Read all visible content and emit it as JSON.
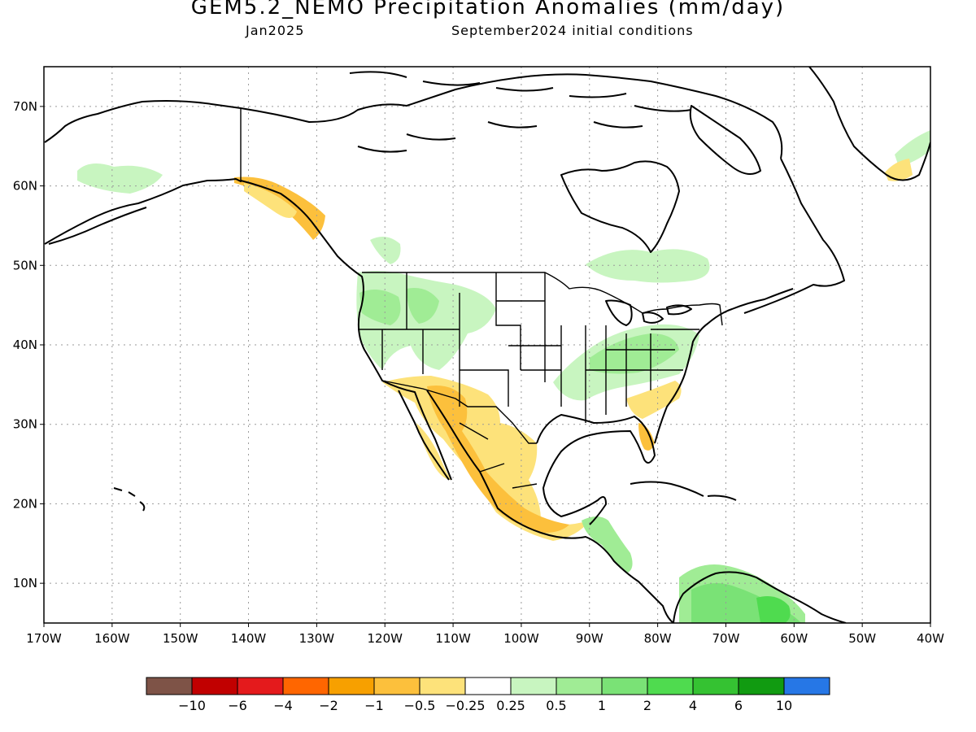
{
  "header": {
    "title": "GEM5.2_NEMO Precipitation Anomalies (mm/day)",
    "subtitle_left": "Jan2025",
    "subtitle_right": "September2024 initial conditions"
  },
  "map": {
    "lon_labels": [
      "170W",
      "160W",
      "150W",
      "140W",
      "130W",
      "120W",
      "110W",
      "100W",
      "90W",
      "80W",
      "70W",
      "60W",
      "50W",
      "40W"
    ],
    "lat_labels": [
      "70N",
      "60N",
      "50N",
      "40N",
      "30N",
      "20N",
      "10N"
    ],
    "grid": "dotted"
  },
  "colorbar": {
    "colors": [
      "#7e5347",
      "#c10000",
      "#e41a1c",
      "#ff6600",
      "#f7a000",
      "#fcc03c",
      "#fde27a",
      "#ffffff",
      "#c8f5c0",
      "#a0ec95",
      "#7ae276",
      "#4fdb4f",
      "#35c232",
      "#119b11",
      "#2677e6"
    ],
    "labels": [
      "−10",
      "−6",
      "−4",
      "−2",
      "−1",
      "−0.5",
      "−0.25",
      "0.25",
      "0.5",
      "1",
      "2",
      "4",
      "6",
      "10"
    ]
  }
}
